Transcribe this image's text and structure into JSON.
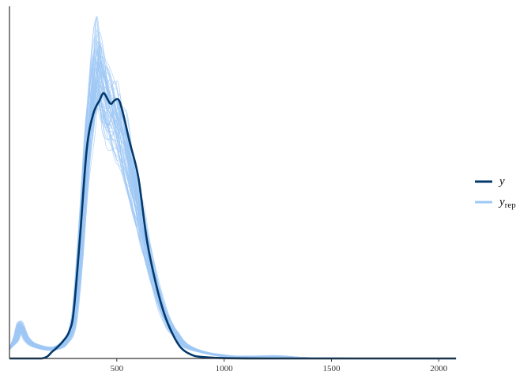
{
  "chart_data": {
    "type": "line",
    "title": "",
    "xlabel": "",
    "ylabel": "",
    "xlim": [
      0,
      2080
    ],
    "ylim": [
      0,
      1
    ],
    "grid": false,
    "x_ticks": [
      500,
      1000,
      1500,
      2000
    ],
    "x_tick_labels": [
      "500",
      "1000",
      "1500",
      "2000"
    ],
    "legend": {
      "position": "right",
      "entries": [
        {
          "label": "y",
          "subscript": "",
          "color": "#03396c"
        },
        {
          "label": "y",
          "subscript": "rep",
          "color": "#9ec8f5"
        }
      ]
    },
    "series": [
      {
        "name": "y",
        "color": "#03396c",
        "x": [
          0,
          150,
          200,
          250,
          280,
          300,
          330,
          360,
          390,
          420,
          440,
          470,
          490,
          510,
          530,
          560,
          600,
          640,
          680,
          720,
          760,
          800,
          850,
          900,
          1000,
          1200,
          1500,
          1800,
          2080
        ],
        "values": [
          0,
          0,
          0.02,
          0.05,
          0.08,
          0.14,
          0.36,
          0.6,
          0.7,
          0.74,
          0.76,
          0.73,
          0.74,
          0.74,
          0.7,
          0.62,
          0.52,
          0.34,
          0.22,
          0.13,
          0.07,
          0.03,
          0.01,
          0.004,
          0.001,
          0,
          0,
          0,
          0
        ]
      },
      {
        "name": "y_rep",
        "color": "#9ec8f5",
        "draws": 60,
        "x": [
          0,
          30,
          50,
          80,
          120,
          200,
          260,
          300,
          330,
          360,
          390,
          410,
          430,
          460,
          490,
          510,
          540,
          580,
          620,
          660,
          700,
          740,
          780,
          820,
          900,
          1000,
          1100,
          1250,
          1400,
          1600,
          2080
        ],
        "values": [
          0.03,
          0.06,
          0.1,
          0.06,
          0.04,
          0.03,
          0.05,
          0.12,
          0.34,
          0.62,
          0.82,
          0.9,
          0.83,
          0.78,
          0.74,
          0.72,
          0.64,
          0.52,
          0.4,
          0.28,
          0.18,
          0.11,
          0.07,
          0.04,
          0.02,
          0.008,
          0.005,
          0.006,
          0.002,
          0.001,
          0
        ]
      }
    ]
  }
}
